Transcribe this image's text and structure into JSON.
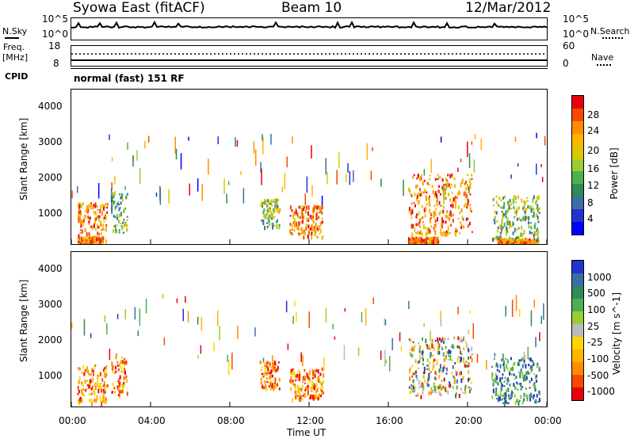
{
  "header": {
    "title": "Syowa East (fitACF)",
    "beam": "Beam 10",
    "date": "12/Mar/2012"
  },
  "top_panels": {
    "nsky_label": "N.Sky",
    "nsky_ticks": [
      "10^5",
      "10^0"
    ],
    "nsearch_label": "N.Search",
    "nsearch_ticks": [
      "10^5",
      "10^0"
    ],
    "freq_label": "Freq.",
    "freq_unit": "[MHz]",
    "freq_ticks": [
      "18",
      "8"
    ],
    "nave_label": "Nave",
    "nave_ticks": [
      "60",
      "0"
    ],
    "cpid_label": "CPID",
    "cpid_value": "normal (fast) 151 RF"
  },
  "chart_data": [
    {
      "type": "heatmap",
      "name": "power",
      "ylabel": "Slant Range [km]",
      "yticks": [
        "4000",
        "3000",
        "2000",
        "1000"
      ],
      "ylim": [
        180,
        4600
      ],
      "xlim": [
        0,
        24
      ],
      "colorbar_label": "Power [dB]",
      "colorbar_ticks": [
        "28",
        "24",
        "20",
        "16",
        "12",
        "8",
        "4"
      ],
      "colorbar_colors": [
        "#e8000b",
        "#f54a00",
        "#ff8c00",
        "#ffb400",
        "#d7c800",
        "#9acd32",
        "#4caf50",
        "#2e8b57",
        "#3b6ea8",
        "#2233cc",
        "#0000ff"
      ],
      "regions": [
        {
          "t0": 0.3,
          "t1": 1.8,
          "r0": 300,
          "r1": 1400,
          "level": "high"
        },
        {
          "t0": 2.0,
          "t1": 2.8,
          "r0": 500,
          "r1": 1700,
          "level": "mid"
        },
        {
          "t0": 0.3,
          "t1": 1.5,
          "r0": 200,
          "r1": 400,
          "level": "high"
        },
        {
          "t0": 9.5,
          "t1": 10.5,
          "r0": 700,
          "r1": 1500,
          "level": "mid"
        },
        {
          "t0": 11.0,
          "t1": 12.7,
          "r0": 400,
          "r1": 1300,
          "level": "high"
        },
        {
          "t0": 17.0,
          "t1": 20.2,
          "r0": 500,
          "r1": 2200,
          "level": "high"
        },
        {
          "t0": 17.0,
          "t1": 18.5,
          "r0": 200,
          "r1": 400,
          "level": "high"
        },
        {
          "t0": 21.2,
          "t1": 23.6,
          "r0": 300,
          "r1": 1600,
          "level": "mid"
        },
        {
          "t0": 21.5,
          "t1": 23.5,
          "r0": 200,
          "r1": 350,
          "level": "high"
        }
      ]
    },
    {
      "type": "heatmap",
      "name": "velocity",
      "ylabel": "Slant Range [km]",
      "yticks": [
        "4000",
        "3000",
        "2000",
        "1000"
      ],
      "ylim": [
        180,
        4600
      ],
      "xlim": [
        0,
        24
      ],
      "xticks": [
        "00:00",
        "04:00",
        "08:00",
        "12:00",
        "16:00",
        "20:00",
        "00:00"
      ],
      "xlabel": "Time UT",
      "colorbar_label": "Velocity [m s^-1]",
      "colorbar_ticks": [
        "1000",
        "500",
        "100",
        "25",
        "-25",
        "-100",
        "-500",
        "-1000"
      ],
      "colorbar_colors": [
        "#2233cc",
        "#3b6ea8",
        "#2e8b57",
        "#4caf50",
        "#9acd32",
        "#bbbbbb",
        "#ffd700",
        "#ffb400",
        "#ff8c00",
        "#f54a00",
        "#e8000b"
      ],
      "regions": [
        {
          "t0": 0.3,
          "t1": 1.8,
          "r0": 300,
          "r1": 1400,
          "level": "neg"
        },
        {
          "t0": 2.0,
          "t1": 2.8,
          "r0": 500,
          "r1": 1700,
          "level": "neg"
        },
        {
          "t0": 9.5,
          "t1": 10.5,
          "r0": 700,
          "r1": 1500,
          "level": "neg"
        },
        {
          "t0": 11.0,
          "t1": 12.7,
          "r0": 400,
          "r1": 1300,
          "level": "neg"
        },
        {
          "t0": 17.0,
          "t1": 20.2,
          "r0": 500,
          "r1": 2200,
          "level": "mix"
        },
        {
          "t0": 21.2,
          "t1": 23.6,
          "r0": 300,
          "r1": 1600,
          "level": "pos"
        }
      ]
    }
  ]
}
